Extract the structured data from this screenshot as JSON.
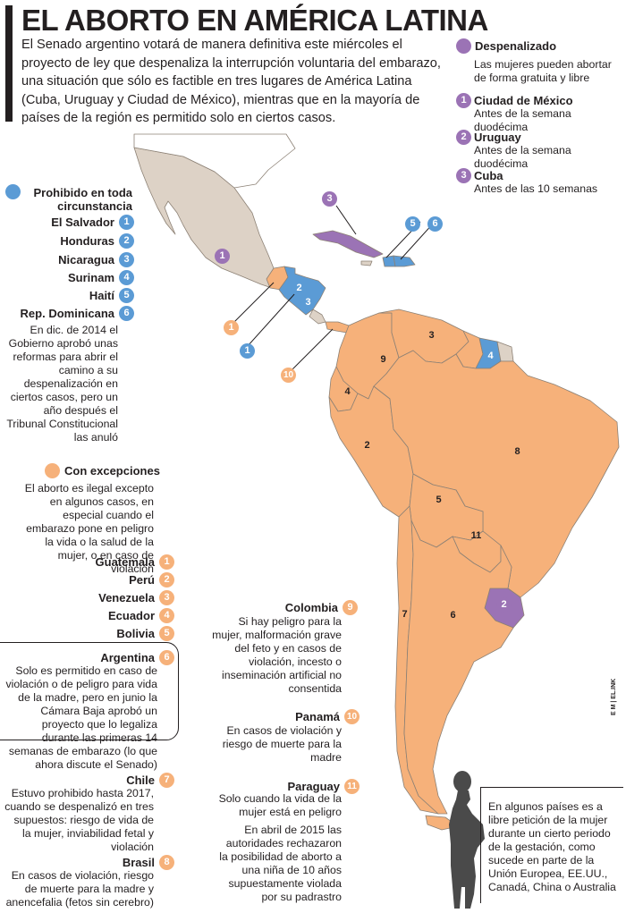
{
  "header": {
    "title": "EL ABORTO EN AMÉRICA LATINA",
    "lead": "El Senado argentino votará de manera definitiva este miércoles el proyecto de ley que despenaliza la interrupción voluntaria del embarazo, una situación que sólo es factible en tres lugares de América Latina (Cuba, Uruguay y Ciudad de México), mientras que en la mayoría de países de la región es permitido solo en ciertos casos."
  },
  "colors": {
    "prohibited": "#5b9bd5",
    "exceptions": "#f6b17a",
    "decriminalized": "#9b73b5",
    "other_land": "#ddd2c6"
  },
  "decriminalized": {
    "title": "Despenalizado",
    "description": "Las mujeres pueden abortar de forma gratuita y libre",
    "items": [
      {
        "num": "1",
        "name": "Ciudad de México",
        "note": "Antes de la semana duodécima"
      },
      {
        "num": "2",
        "name": "Uruguay",
        "note": "Antes de la semana duodécima"
      },
      {
        "num": "3",
        "name": "Cuba",
        "note": "Antes de las 10 semanas"
      }
    ]
  },
  "prohibited": {
    "title": "Prohibido en toda circunstancia",
    "items": [
      {
        "num": "1",
        "name": "El Salvador"
      },
      {
        "num": "2",
        "name": "Honduras"
      },
      {
        "num": "3",
        "name": "Nicaragua"
      },
      {
        "num": "4",
        "name": "Surinam"
      },
      {
        "num": "5",
        "name": "Haití"
      },
      {
        "num": "6",
        "name": "Rep. Dominicana"
      }
    ],
    "dominican_note": "En dic. de 2014 el Gobierno aprobó unas reformas para abrir el camino a su despenalización en ciertos casos, pero un año después el Tribunal Constitucional las anuló"
  },
  "exceptions": {
    "title": "Con excepciones",
    "description": "El aborto es ilegal excepto en algunos casos, en especial cuando el embarazo pone en peligro la vida o la salud de la mujer, o en caso de violación",
    "items": [
      {
        "num": "1",
        "name": "Guatemala"
      },
      {
        "num": "2",
        "name": "Perú"
      },
      {
        "num": "3",
        "name": "Venezuela"
      },
      {
        "num": "4",
        "name": "Ecuador"
      },
      {
        "num": "5",
        "name": "Bolivia"
      }
    ],
    "detailed": [
      {
        "num": "6",
        "name": "Argentina",
        "note": "Solo es permitido en caso de violación o de peligro para vida de la madre, pero en junio la Cámara Baja aprobó un proyecto que lo legaliza durante las primeras 14 semanas de embarazo (lo que ahora discute el Senado)"
      },
      {
        "num": "7",
        "name": "Chile",
        "note": "Estuvo prohibido hasta 2017, cuando se despenalizó en tres supuestos: riesgo de vida de la mujer, inviabilidad fetal y violación"
      },
      {
        "num": "8",
        "name": "Brasil",
        "note": "En casos de violación, riesgo de muerte para la madre y anencefalia (fetos sin cerebro)"
      },
      {
        "num": "9",
        "name": "Colombia",
        "note": "Si hay peligro para la mujer, malformación grave del feto y en casos de violación, incesto o inseminación artificial no consentida"
      },
      {
        "num": "10",
        "name": "Panamá",
        "note": "En casos de violación y riesgo de muerte para la madre"
      },
      {
        "num": "11",
        "name": "Paraguay",
        "note": "Solo cuando la vida de la mujer está en peligro",
        "note2": "En abril de 2015 las autoridades rechazaron la posibilidad de aborto a una niña de 10 años supuestamente violada por su padrastro"
      }
    ]
  },
  "side_note": "En algunos países es a libre petición de la mujer durante un cierto periodo de la gestación, como sucede en parte de la Unión Europea, EE.UU., Canadá, China o Australia",
  "credit": "E M | EL.INK",
  "map_labels": {
    "mexico": "1",
    "uruguay": "2",
    "cuba": "3",
    "salvador": "1",
    "honduras": "2",
    "nicaragua": "3",
    "suriname": "4",
    "haiti": "5",
    "dominican": "6",
    "guatemala": "1",
    "peru": "2",
    "venezuela": "3",
    "ecuador": "4",
    "bolivia": "5",
    "argentina": "6",
    "chile": "7",
    "brazil": "8",
    "colombia": "9",
    "panama": "10",
    "paraguay": "11"
  }
}
